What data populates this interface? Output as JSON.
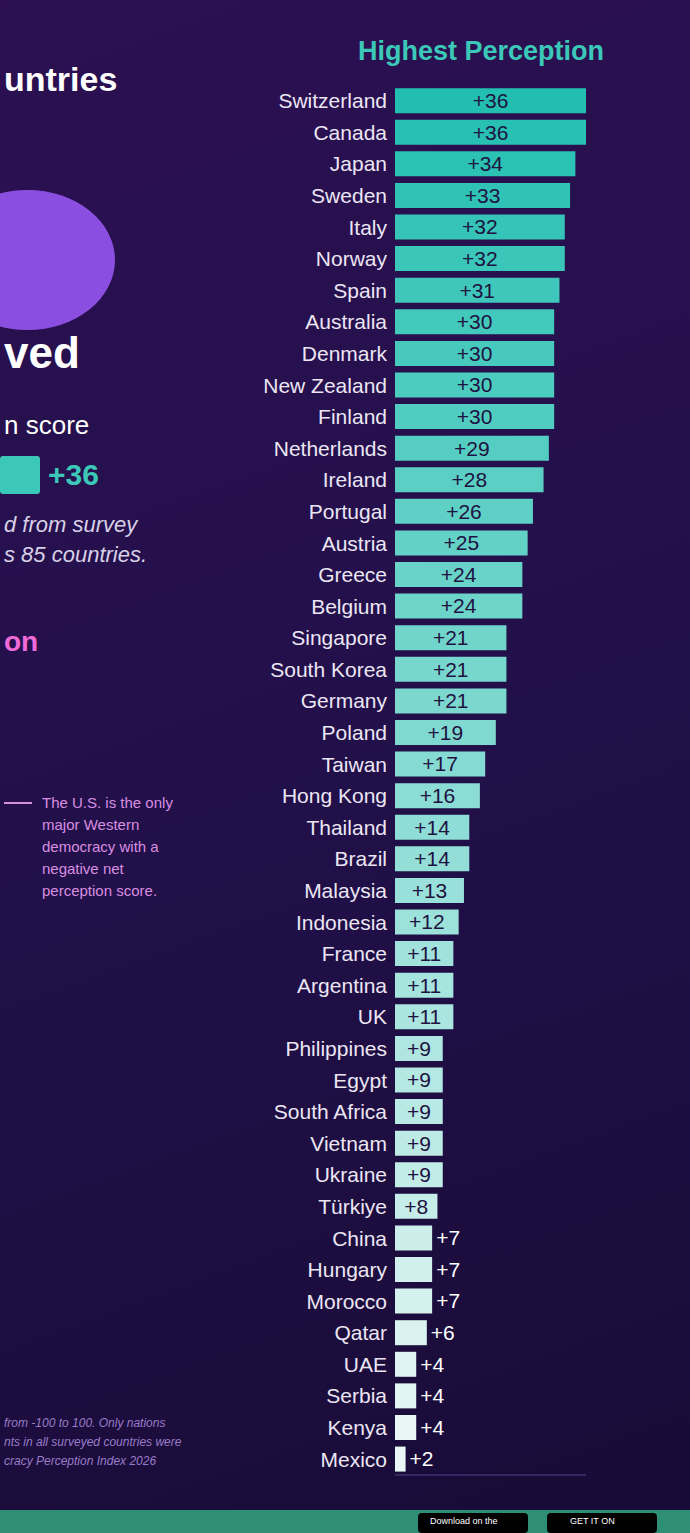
{
  "chart_data": {
    "type": "bar",
    "orientation": "horizontal",
    "title": "Highest Perception",
    "categories": [
      "Switzerland",
      "Canada",
      "Japan",
      "Sweden",
      "Italy",
      "Norway",
      "Spain",
      "Australia",
      "Denmark",
      "New Zealand",
      "Finland",
      "Netherlands",
      "Ireland",
      "Portugal",
      "Austria",
      "Greece",
      "Belgium",
      "Singapore",
      "South Korea",
      "Germany",
      "Poland",
      "Taiwan",
      "Hong Kong",
      "Thailand",
      "Brazil",
      "Malaysia",
      "Indonesia",
      "France",
      "Argentina",
      "UK",
      "Philippines",
      "Egypt",
      "South Africa",
      "Vietnam",
      "Ukraine",
      "Türkiye",
      "China",
      "Hungary",
      "Morocco",
      "Qatar",
      "UAE",
      "Serbia",
      "Kenya",
      "Mexico"
    ],
    "values": [
      36,
      36,
      34,
      33,
      32,
      32,
      31,
      30,
      30,
      30,
      30,
      29,
      28,
      26,
      25,
      24,
      24,
      21,
      21,
      21,
      19,
      17,
      16,
      14,
      14,
      13,
      12,
      11,
      11,
      11,
      9,
      9,
      9,
      9,
      9,
      8,
      7,
      7,
      7,
      6,
      4,
      4,
      4,
      2
    ],
    "value_labels": [
      "+36",
      "+36",
      "+34",
      "+33",
      "+32",
      "+32",
      "+31",
      "+30",
      "+30",
      "+30",
      "+30",
      "+29",
      "+28",
      "+26",
      "+25",
      "+24",
      "+24",
      "+21",
      "+21",
      "+21",
      "+19",
      "+17",
      "+16",
      "+14",
      "+14",
      "+13",
      "+12",
      "+11",
      "+11",
      "+11",
      "+9",
      "+9",
      "+9",
      "+9",
      "+9",
      "+8",
      "+7",
      "+7",
      "+7",
      "+6",
      "+4",
      "+4",
      "+4",
      "+2"
    ],
    "colors": [
      "#22bfb0",
      "#27c0b2",
      "#2bc2b3",
      "#30c3b5",
      "#35c4b7",
      "#3ac6b8",
      "#3ec7ba",
      "#43c8bc",
      "#48c9bd",
      "#4ccbbf",
      "#51ccc0",
      "#56cdc2",
      "#5bcfc4",
      "#5fd0c5",
      "#64d1c7",
      "#69d3c9",
      "#6dd4ca",
      "#72d5cc",
      "#77d7ce",
      "#7cd8cf",
      "#80d9d1",
      "#85dbd3",
      "#8adcd4",
      "#8eddd6",
      "#93ded7",
      "#98e0d9",
      "#9de1db",
      "#a1e2dc",
      "#a6e4de",
      "#abe5e0",
      "#afe6e1",
      "#b4e8e3",
      "#b9e9e5",
      "#beeae6",
      "#c2ece8",
      "#c7edea",
      "#cceeeb",
      "#d0efed",
      "#d5f1ee",
      "#daf2f0",
      "#dff3f2",
      "#e3f5f3",
      "#e8f6f5",
      "#e8f6f5"
    ],
    "xlim": [
      0,
      36
    ],
    "data_labels": true,
    "tick_labels": "y",
    "grid": false,
    "annotations": [
      "untries",
      "ved",
      "n score",
      "+36",
      "d from survey",
      "s 85 countries.",
      "on",
      "The U.S. is the only major Western democracy with a negative net perception score.",
      "from -100 to 100. Only nations",
      "nts in all surveyed countries were",
      "cracy Perception Index 2026",
      "Download on the",
      "GET IT ON"
    ]
  }
}
